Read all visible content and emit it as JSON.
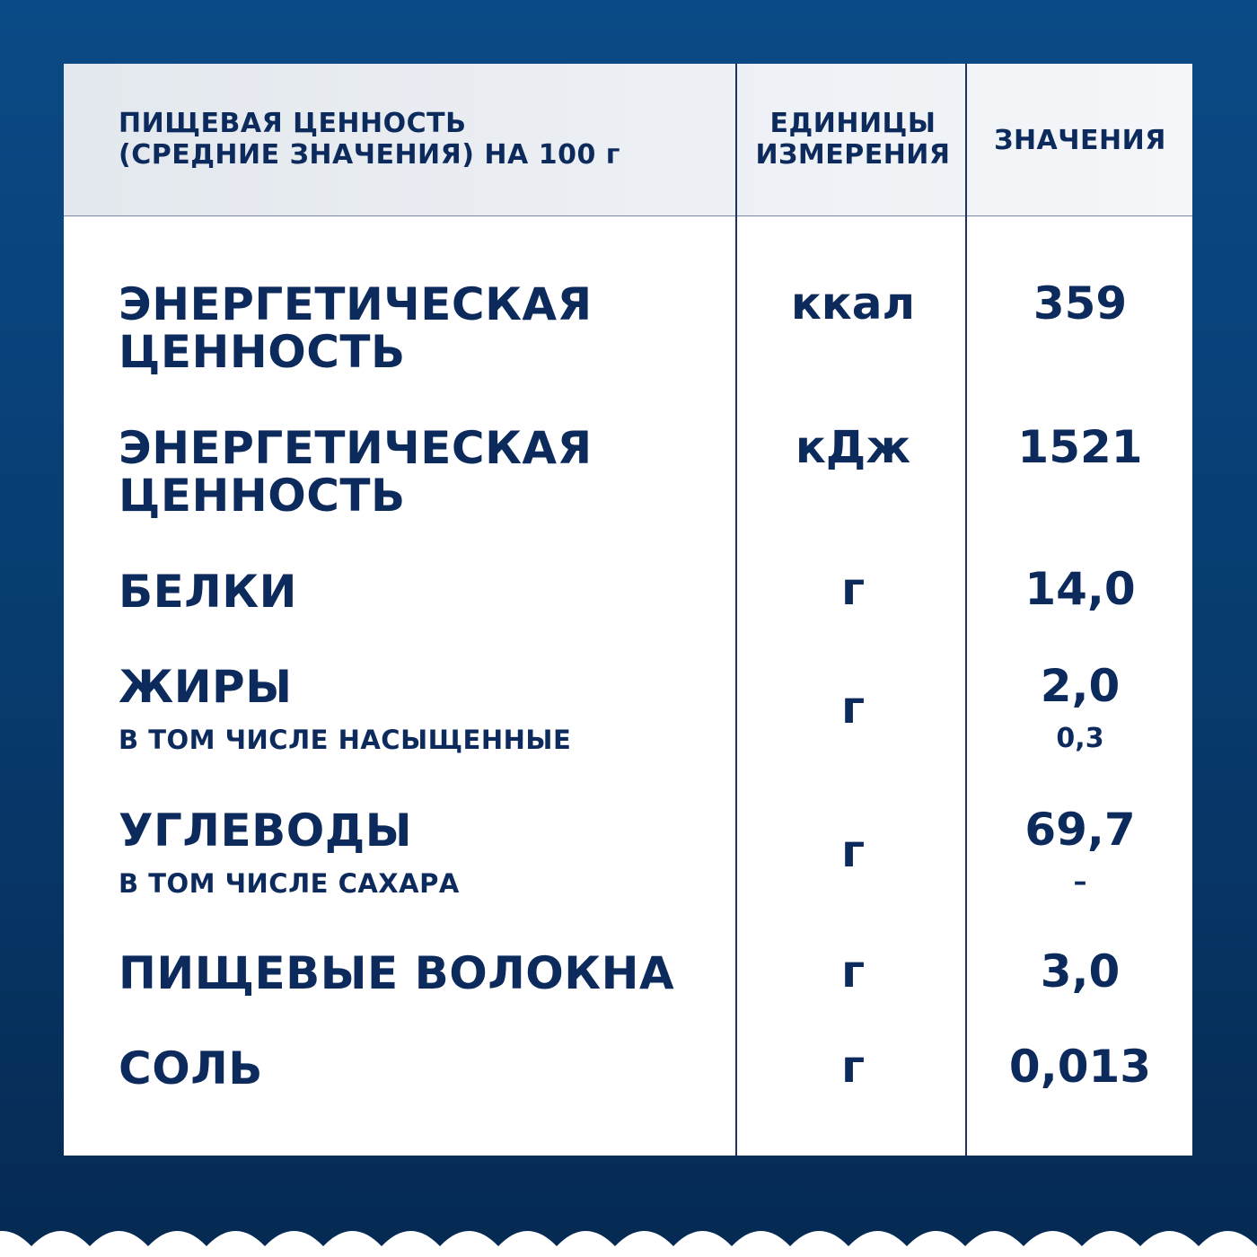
{
  "header": {
    "col1_line1": "ПИЩЕВАЯ ЦЕННОСТЬ",
    "col1_line2": "(СРЕДНИЕ ЗНАЧЕНИЯ) НА 100 г",
    "col2_line1": "ЕДИНИЦЫ",
    "col2_line2": "ИЗМЕРЕНИЯ",
    "col3": "ЗНАЧЕНИЯ"
  },
  "rows": [
    {
      "label_line1": "ЭНЕРГЕТИЧЕСКАЯ",
      "label_line2": "ЦЕННОСТЬ",
      "unit": "ккал",
      "value": "359"
    },
    {
      "label_line1": "ЭНЕРГЕТИЧЕСКАЯ",
      "label_line2": "ЦЕННОСТЬ",
      "unit": "кДж",
      "value": "1521"
    },
    {
      "label": "БЕЛКИ",
      "unit": "г",
      "value": "14,0"
    },
    {
      "label": "ЖИРЫ",
      "sublabel": "В ТОМ ЧИСЛЕ НАСЫЩЕННЫЕ",
      "unit": "г",
      "value": "2,0",
      "subvalue": "0,3"
    },
    {
      "label": "УГЛЕВОДЫ",
      "sublabel": "В ТОМ ЧИСЛЕ САХАРА",
      "unit": "г",
      "value": "69,7",
      "subvalue": "–"
    },
    {
      "label": "ПИЩЕВЫЕ ВОЛОКНА",
      "unit": "г",
      "value": "3,0"
    },
    {
      "label": "СОЛЬ",
      "unit": "г",
      "value": "0,013"
    }
  ],
  "colors": {
    "background_top": "#0a4a86",
    "background_bottom": "#052a52",
    "text": "#0c2a5c",
    "header_bg": "#e3e8ee"
  }
}
